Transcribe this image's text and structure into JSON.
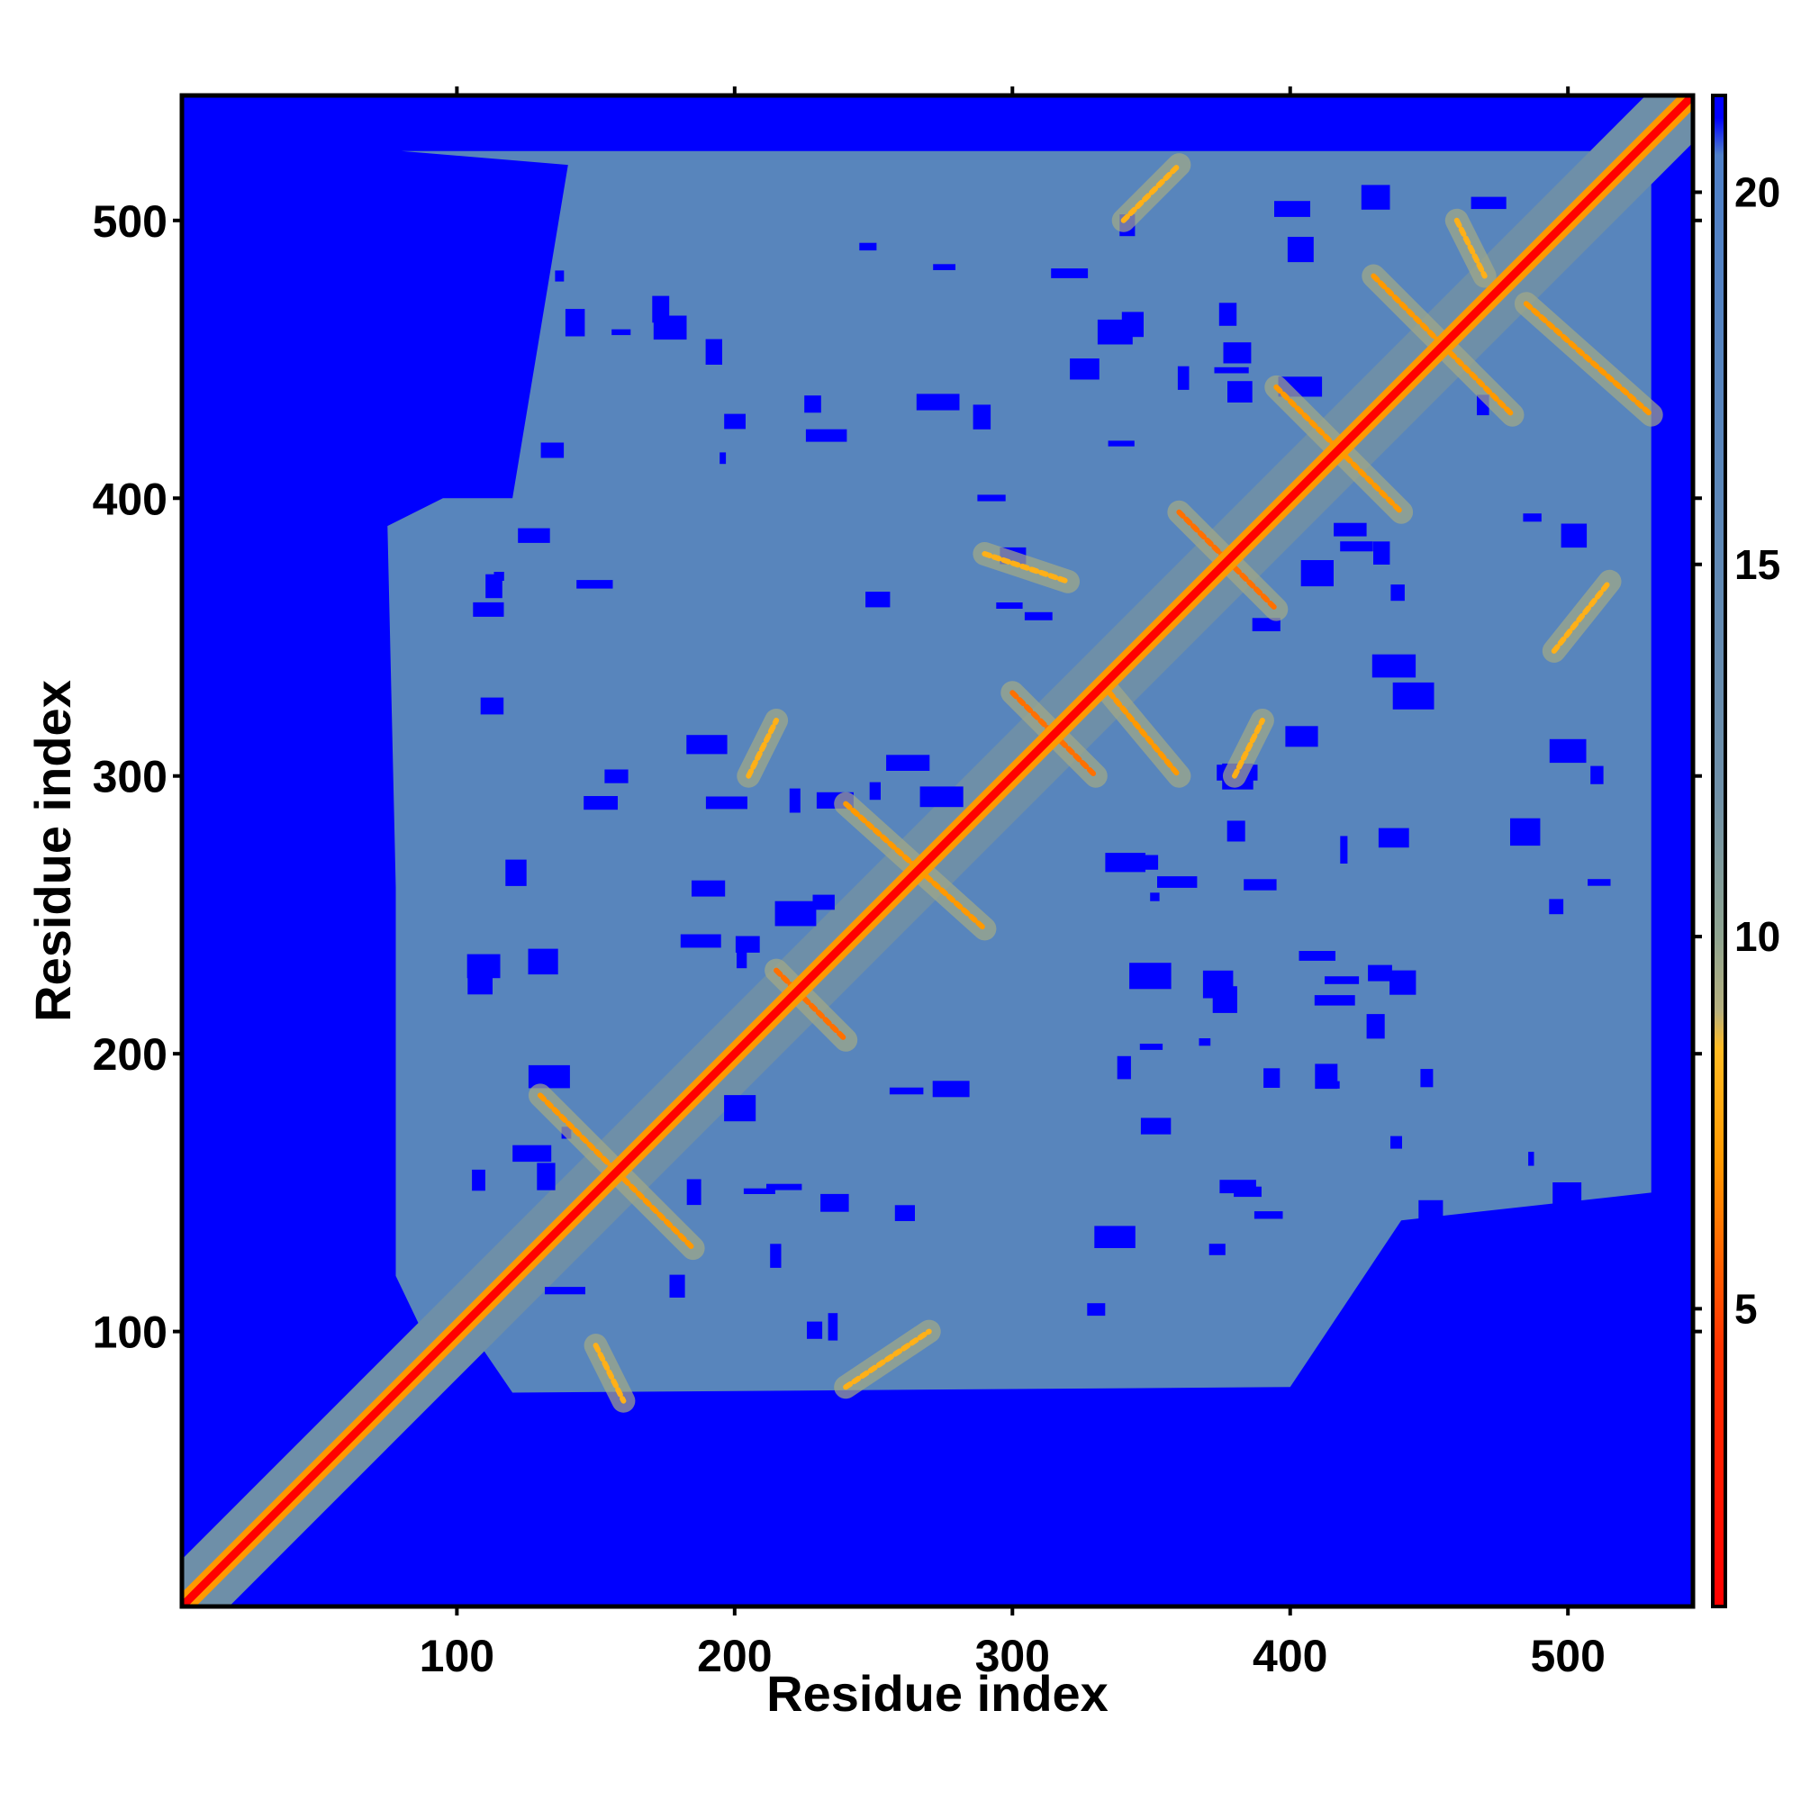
{
  "chart_data": {
    "type": "heatmap",
    "title": "",
    "xlabel": "Residue index",
    "ylabel": "Residue index",
    "xlim": [
      1,
      545
    ],
    "ylim": [
      1,
      545
    ],
    "x_ticks": [
      100,
      200,
      300,
      400,
      500
    ],
    "y_ticks": [
      100,
      200,
      300,
      400,
      500
    ],
    "x_tick_labels": [
      "100",
      "200",
      "300",
      "400",
      "500"
    ],
    "y_tick_labels": [
      "100",
      "200",
      "300",
      "400",
      "500"
    ],
    "grid": false,
    "colorbar": {
      "range": [
        1,
        21.3
      ],
      "ticks": [
        5,
        10,
        15,
        20
      ],
      "tick_labels": [
        "5",
        "10",
        "15",
        "20"
      ],
      "stops": [
        {
          "value": 1,
          "color": "#ff0000"
        },
        {
          "value": 4.5,
          "color": "#ff3300"
        },
        {
          "value": 7,
          "color": "#ff9900"
        },
        {
          "value": 8.5,
          "color": "#ffbb22"
        },
        {
          "value": 9,
          "color": "#b6b07e"
        },
        {
          "value": 10,
          "color": "#8fa490"
        },
        {
          "value": 12,
          "color": "#6e8fa8"
        },
        {
          "value": 16,
          "color": "#5b86b8"
        },
        {
          "value": 20.5,
          "color": "#4f80c8"
        },
        {
          "value": 21,
          "color": "#0000ff"
        },
        {
          "value": 21.3,
          "color": "#0000ff"
        }
      ]
    },
    "colors": {
      "background_far": "#0000ff",
      "mid_distance": "#5682b6",
      "near_contact": "#f2c431",
      "close_contact": "#ff7700",
      "diagonal": "#ff0000"
    },
    "data_description_values": {
      "matrix_size": 545,
      "diagonal_distance": 1,
      "far_distance_cap": 21,
      "mid_distance": 17
    },
    "dense_region_y_range": [
      75,
      525
    ],
    "dense_region_x_range": [
      80,
      530
    ],
    "contact_segments": [
      {
        "from": [
          215,
          230
        ],
        "to": [
          240,
          205
        ],
        "distance": 6
      },
      {
        "from": [
          360,
          395
        ],
        "to": [
          395,
          360
        ],
        "distance": 6
      },
      {
        "from": [
          300,
          330
        ],
        "to": [
          330,
          300
        ],
        "distance": 6
      },
      {
        "from": [
          240,
          290
        ],
        "to": [
          290,
          245
        ],
        "distance": 7
      },
      {
        "from": [
          130,
          185
        ],
        "to": [
          185,
          130
        ],
        "distance": 7
      },
      {
        "from": [
          395,
          440
        ],
        "to": [
          440,
          395
        ],
        "distance": 7
      },
      {
        "from": [
          430,
          480
        ],
        "to": [
          480,
          430
        ],
        "distance": 7
      },
      {
        "from": [
          485,
          470
        ],
        "to": [
          530,
          430
        ],
        "distance": 7
      },
      {
        "from": [
          335,
          330
        ],
        "to": [
          360,
          300
        ],
        "distance": 7
      },
      {
        "from": [
          205,
          300
        ],
        "to": [
          215,
          320
        ],
        "distance": 8
      },
      {
        "from": [
          340,
          500
        ],
        "to": [
          360,
          520
        ],
        "distance": 8
      },
      {
        "from": [
          460,
          500
        ],
        "to": [
          470,
          480
        ],
        "distance": 8
      },
      {
        "from": [
          495,
          345
        ],
        "to": [
          515,
          370
        ],
        "distance": 8
      },
      {
        "from": [
          290,
          380
        ],
        "to": [
          320,
          370
        ],
        "distance": 8
      },
      {
        "from": [
          380,
          300
        ],
        "to": [
          390,
          320
        ],
        "distance": 8
      },
      {
        "from": [
          240,
          80
        ],
        "to": [
          270,
          100
        ],
        "distance": 8
      },
      {
        "from": [
          150,
          95
        ],
        "to": [
          160,
          75
        ],
        "distance": 8
      }
    ]
  }
}
